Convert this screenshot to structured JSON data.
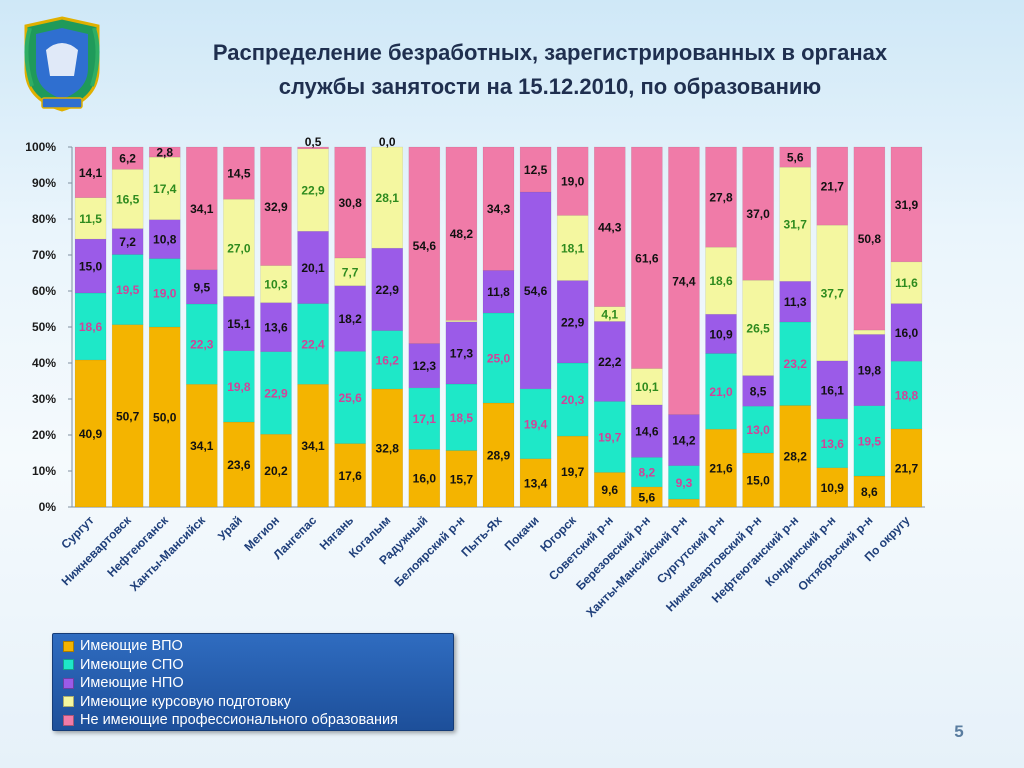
{
  "slide": {
    "title_line1": "Распределение  безработных, зарегистрированных в органах",
    "title_line2": "службы занятости на 15.12.2010, по образованию",
    "page_number": "5"
  },
  "colors": {
    "vpo": "#f4b400",
    "spo": "#1ee8c8",
    "npo": "#9b5be8",
    "courses": "#f4f7a0",
    "none": "#f07ba8"
  },
  "legend": {
    "items": [
      {
        "label": "Имеющие ВПО",
        "color": "#f4b400"
      },
      {
        "label": "Имеющие СПО",
        "color": "#1ee8c8"
      },
      {
        "label": "Имеющие НПО",
        "color": "#9b5be8"
      },
      {
        "label": "Имеющие курсовую подготовку",
        "color": "#f4f7a0"
      },
      {
        "label": "Не имеющие профессионального образования",
        "color": "#f07ba8"
      }
    ]
  },
  "chart_data": {
    "type": "bar",
    "stacked": true,
    "percent_stacked": true,
    "categories": [
      "Сургут",
      "Нижневартовск",
      "Нефтеюганск",
      "Ханты-Мансийск",
      "Урай",
      "Мегион",
      "Лангепас",
      "Нягань",
      "Когалым",
      "Радужный",
      "Белоярский р-н",
      "Пыть-Ях",
      "Покачи",
      "Югорск",
      "Советский р-н",
      "Березовский р-н",
      "Ханты-Мансийский р-н",
      "Сургутский р-н",
      "Нижневартовский р-н",
      "Нефтеюганский р-н",
      "Кондинский р-н",
      "Октябрьский р-н",
      "По округу"
    ],
    "series": [
      {
        "name": "Имеющие ВПО",
        "values": [
          40.9,
          50.7,
          50.0,
          34.1,
          23.6,
          20.2,
          34.1,
          17.6,
          32.8,
          16.0,
          15.7,
          28.9,
          13.4,
          19.7,
          9.6,
          5.6,
          2.2,
          21.6,
          15.0,
          28.2,
          10.9,
          8.6,
          21.7
        ]
      },
      {
        "name": "Имеющие СПО",
        "values": [
          18.6,
          19.5,
          19.0,
          22.3,
          19.8,
          22.9,
          22.4,
          25.6,
          16.2,
          17.1,
          18.5,
          25.0,
          19.4,
          20.3,
          19.7,
          8.2,
          9.3,
          21.0,
          13.0,
          23.2,
          13.6,
          19.5,
          18.8
        ]
      },
      {
        "name": "Имеющие НПО",
        "values": [
          15.0,
          7.2,
          10.8,
          9.5,
          15.1,
          13.6,
          20.1,
          18.2,
          22.9,
          12.3,
          17.3,
          11.8,
          54.6,
          22.9,
          22.2,
          14.6,
          14.2,
          10.9,
          8.5,
          11.3,
          16.1,
          19.8,
          16.0
        ]
      },
      {
        "name": "Имеющие курсовую подготовку",
        "values": [
          11.5,
          16.5,
          17.4,
          0,
          27.0,
          10.3,
          22.9,
          7.7,
          28.1,
          0,
          0.4,
          0,
          0.0,
          18.1,
          4.1,
          10.1,
          0,
          18.6,
          26.5,
          31.7,
          37.7,
          1.2,
          11.6
        ]
      },
      {
        "name": "Не имеющие профессионального образования",
        "values": [
          14.1,
          6.2,
          2.8,
          34.1,
          14.5,
          32.9,
          0.5,
          30.8,
          0.0,
          54.6,
          48.2,
          34.3,
          12.5,
          19.0,
          44.3,
          61.6,
          74.4,
          27.8,
          37.0,
          5.6,
          21.7,
          50.8,
          31.9
        ]
      }
    ],
    "data_labels": [
      [
        "40,9",
        "50,7",
        "50,0",
        "34,1",
        "23,6",
        "20,2",
        "34,1",
        "17,6",
        "32,8",
        "16,0",
        "15,7",
        "28,9",
        "13,4",
        "19,7",
        "9,6",
        "5,6",
        "2,2",
        "21,6",
        "15,0",
        "28,2",
        "10,9",
        "8,6",
        "21,7"
      ],
      [
        "18,6",
        "19,5",
        "19,0",
        "22,3",
        "19,8",
        "22,9",
        "22,4",
        "25,6",
        "16,2",
        "17,1",
        "18,5",
        "25,0",
        "19,4",
        "20,3",
        "19,7",
        "8,2",
        "9,3",
        "21,0",
        "13,0",
        "23,2",
        "13,6",
        "19,5",
        "18,8"
      ],
      [
        "15,0",
        "7,2",
        "10,8",
        "9,5",
        "15,1",
        "13,6",
        "20,1",
        "18,2",
        "22,9",
        "12,3",
        "17,3",
        "11,8",
        "54,6",
        "22,9",
        "22,2",
        "14,6",
        "14,2",
        "10,9",
        "8,5",
        "11,3",
        "16,1",
        "19,8",
        "16,0"
      ],
      [
        "11,5",
        "16,5",
        "17,4",
        "",
        "27,0",
        "10,3",
        "22,9",
        "7,7",
        "28,1",
        "",
        "0,4",
        "",
        "0,0",
        "18,1",
        "4,1",
        "10,1",
        "",
        "18,6",
        "26,5",
        "31,7",
        "37,7",
        "1,2",
        "11,6"
      ],
      [
        "14,1",
        "6,2",
        "2,8",
        "34,1",
        "14,5",
        "32,9",
        "0,5",
        "30,8",
        "0,0",
        "54,6",
        "48,2",
        "34,3",
        "12,5",
        "19,0",
        "44,3",
        "61,6",
        "74,4",
        "27,8",
        "37,0",
        "5,6",
        "21,7",
        "50,8",
        "31,9"
      ]
    ],
    "label_colors": [
      "#111111",
      "#d0449a",
      "#111111",
      "#2e8b1e",
      "#111111"
    ],
    "y_ticks": [
      "0%",
      "10%",
      "20%",
      "30%",
      "40%",
      "50%",
      "60%",
      "70%",
      "80%",
      "90%",
      "100%"
    ],
    "ylim": [
      0,
      100
    ],
    "grid": false,
    "legend_position": "bottom-left"
  }
}
